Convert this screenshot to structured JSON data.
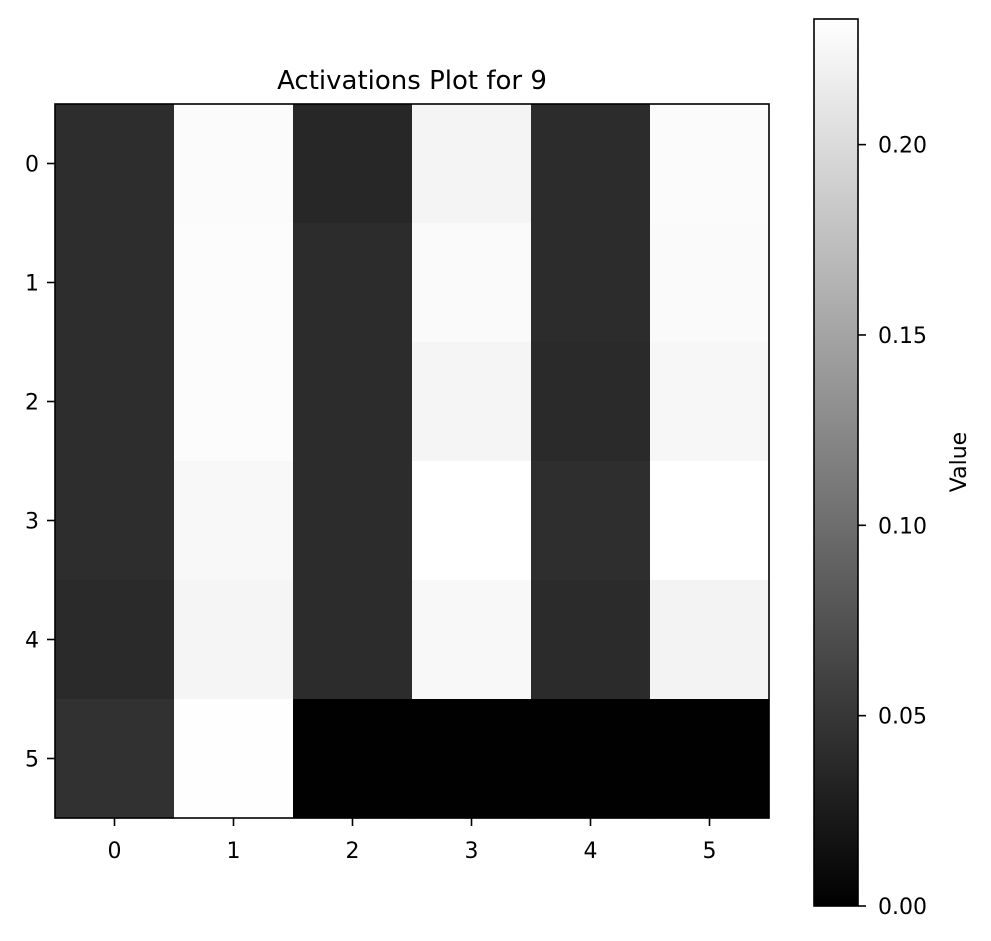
{
  "chart_data": {
    "type": "heatmap",
    "title": "Activations Plot for 9",
    "xlabel": "",
    "ylabel": "",
    "x_categories": [
      "0",
      "1",
      "2",
      "3",
      "4",
      "5"
    ],
    "y_categories": [
      "0",
      "1",
      "2",
      "3",
      "4",
      "5"
    ],
    "values": [
      [
        0.041,
        0.229,
        0.036,
        0.223,
        0.04,
        0.229
      ],
      [
        0.041,
        0.23,
        0.04,
        0.228,
        0.04,
        0.228
      ],
      [
        0.041,
        0.23,
        0.04,
        0.224,
        0.038,
        0.226
      ],
      [
        0.041,
        0.227,
        0.04,
        0.233,
        0.042,
        0.233
      ],
      [
        0.038,
        0.224,
        0.04,
        0.227,
        0.039,
        0.222
      ],
      [
        0.045,
        0.232,
        0.001,
        0.001,
        0.001,
        0.001
      ]
    ],
    "colormap": "gray",
    "colorbar": {
      "label": "Value",
      "vmin": 0.0,
      "vmax": 0.233,
      "ticks": [
        "0.00",
        "0.05",
        "0.10",
        "0.15",
        "0.20"
      ]
    },
    "grid": false
  }
}
